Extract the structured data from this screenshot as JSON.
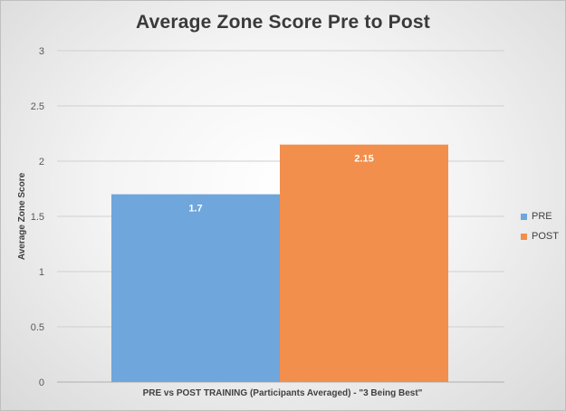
{
  "chart_data": {
    "type": "bar",
    "title": "Average Zone Score Pre to Post",
    "xlabel": "PRE vs POST TRAINING (Participants Averaged)  -  \"3 Being Best\"",
    "ylabel": "Average Zone Score",
    "ylim": [
      0,
      3
    ],
    "yticks": [
      "0",
      "0.5",
      "1",
      "1.5",
      "2",
      "2.5",
      "3"
    ],
    "grid": true,
    "legend_position": "right",
    "series": [
      {
        "name": "PRE",
        "value": 1.7,
        "label": "1.7",
        "color": "#6fa6dc"
      },
      {
        "name": "POST",
        "value": 2.15,
        "label": "2.15",
        "color": "#f28f4c"
      }
    ]
  }
}
